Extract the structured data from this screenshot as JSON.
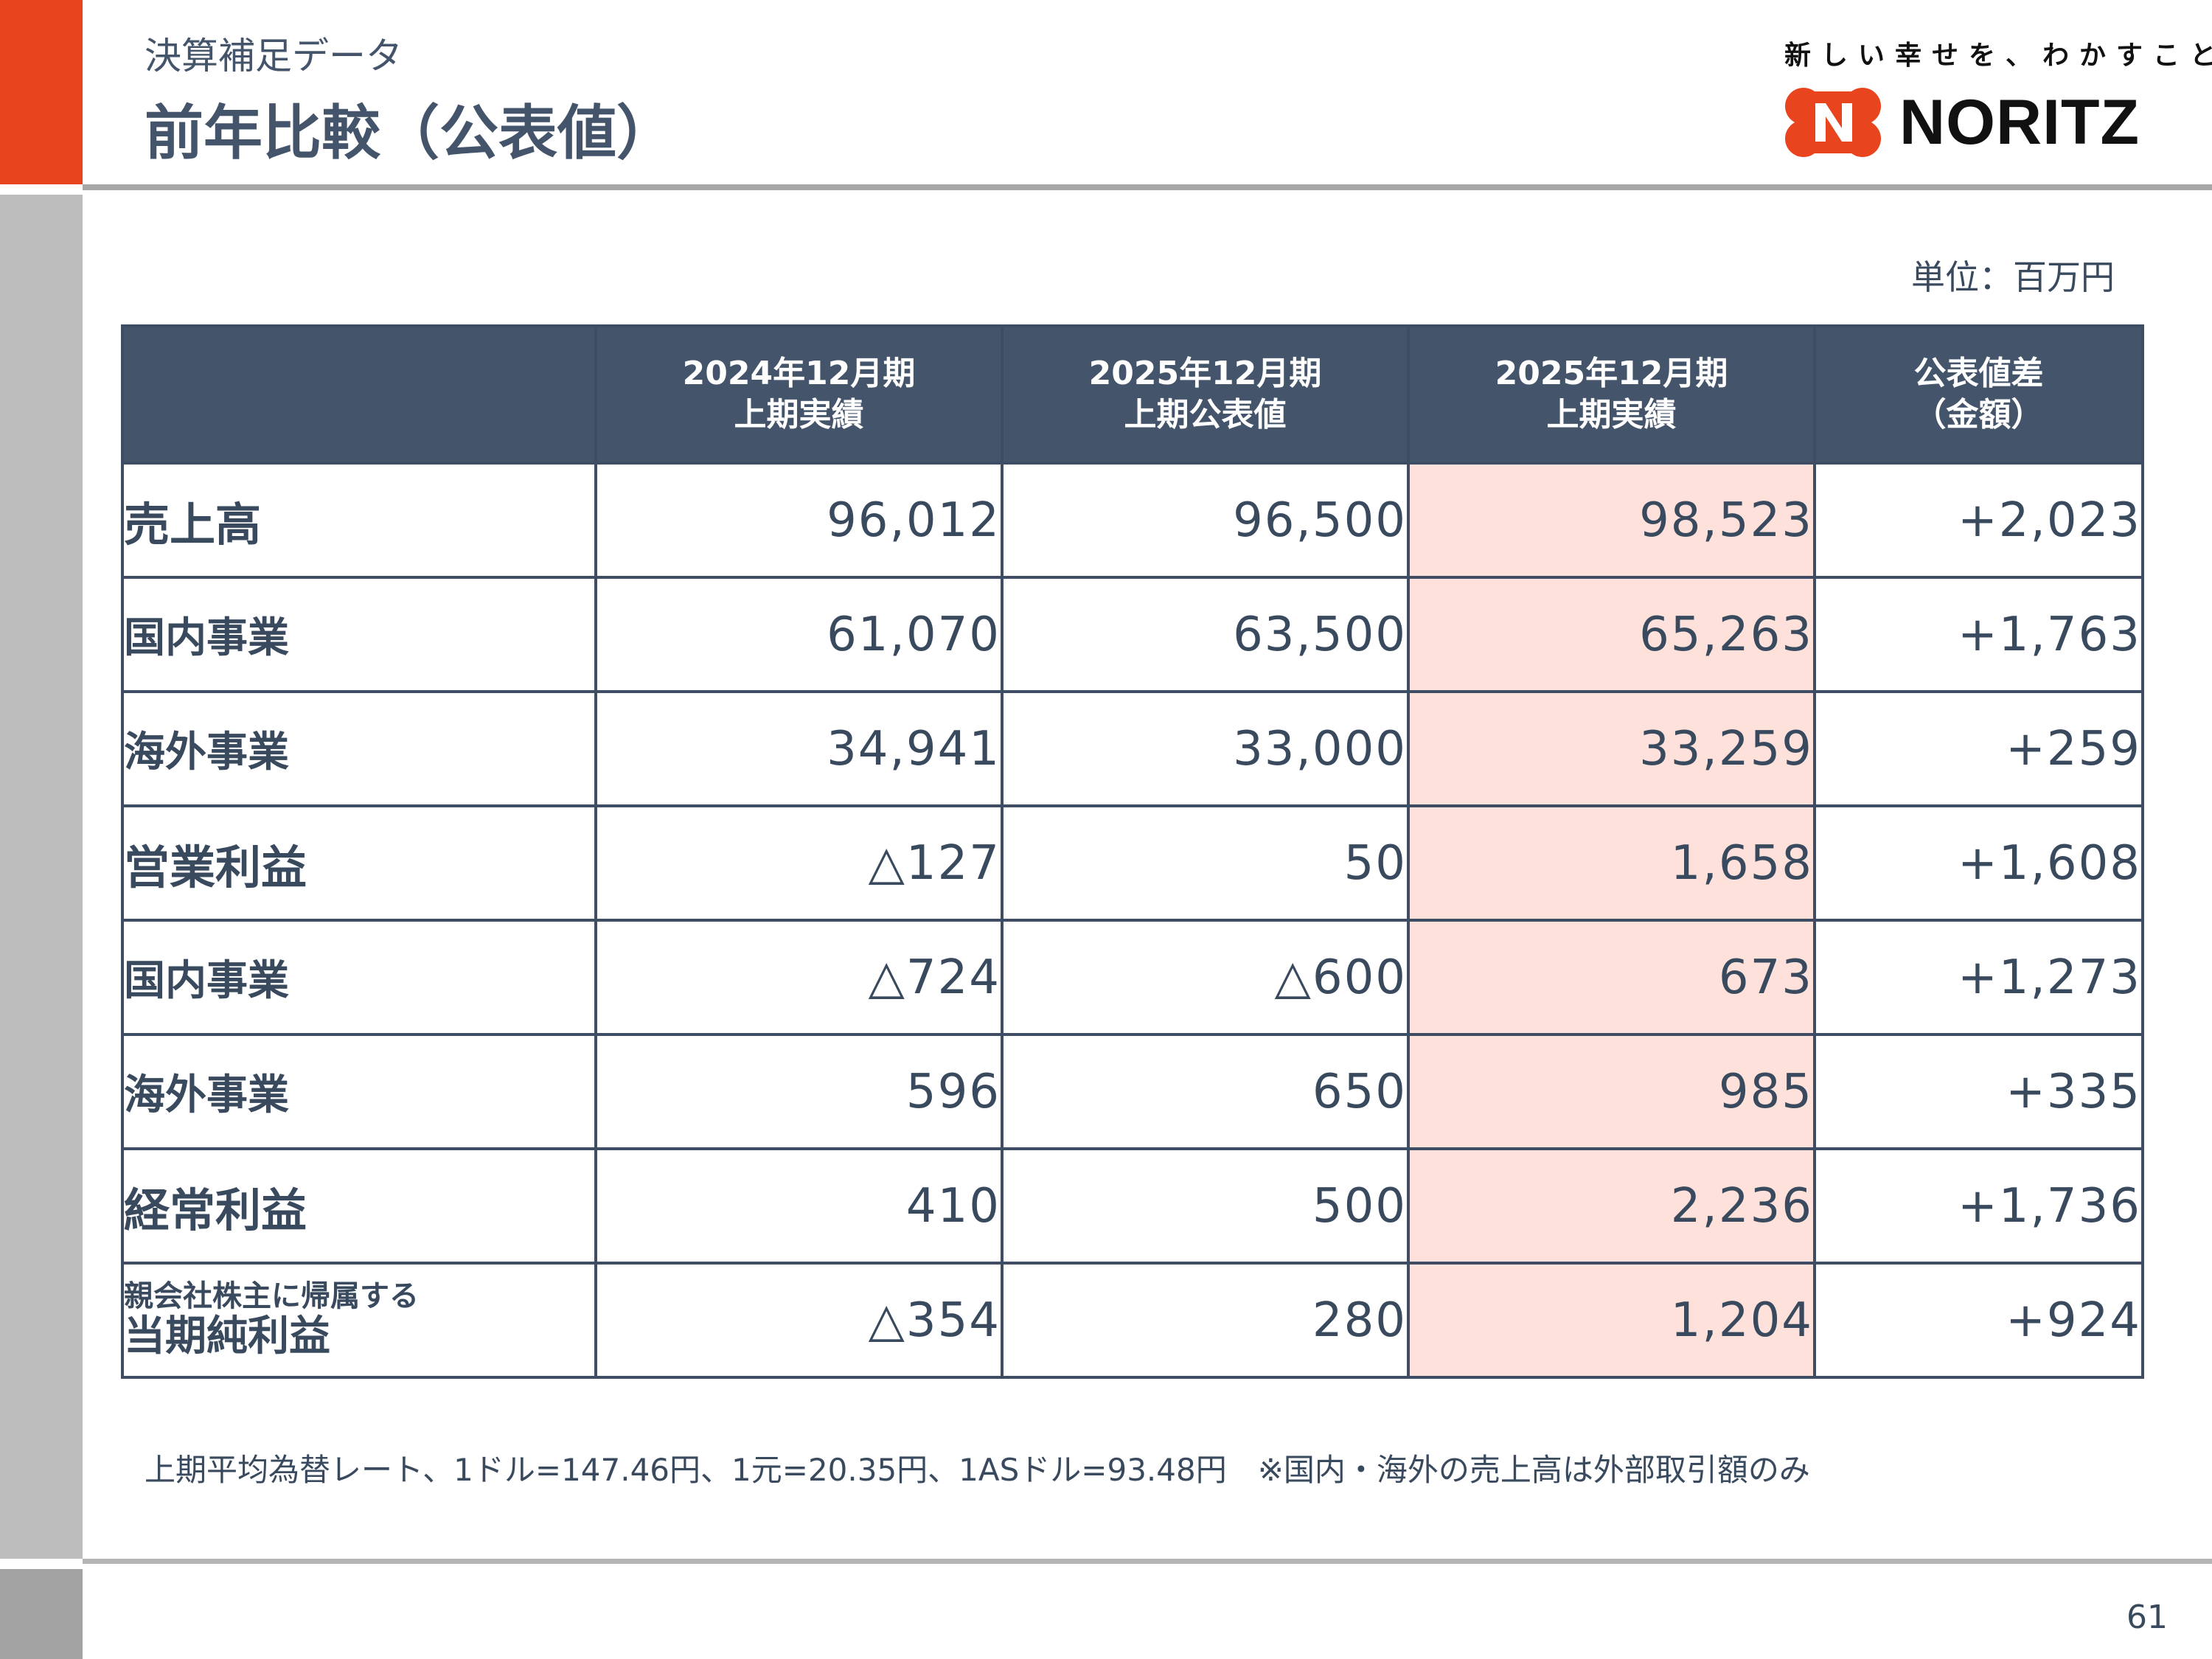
{
  "header": {
    "subtitle": "決算補足データ",
    "title": "前年比較（公表値）",
    "tagline": "新しい幸せを、わかすこと。",
    "brand": "NORITZ",
    "colors": {
      "accent": "#e8451e",
      "header_fill": "#44546a",
      "highlight": "#fde1da",
      "text": "#3a4a5e"
    }
  },
  "unit_label": "単位：百万円",
  "table": {
    "columns": [
      {
        "line1": "2024年12月期",
        "line2": "上期実績"
      },
      {
        "line1": "2025年12月期",
        "line2": "上期公表値"
      },
      {
        "line1": "2025年12月期",
        "line2": "上期実績"
      },
      {
        "line1": "公表値差",
        "line2": "（金額）"
      }
    ],
    "rows": [
      {
        "label": "売上高",
        "values": [
          "96,012",
          "96,500",
          "98,523",
          "+2,023"
        ]
      },
      {
        "label": "国内事業",
        "values": [
          "61,070",
          "63,500",
          "65,263",
          "+1,763"
        ]
      },
      {
        "label": "海外事業",
        "values": [
          "34,941",
          "33,000",
          "33,259",
          "+259"
        ]
      },
      {
        "label": "営業利益",
        "values": [
          "△127",
          "50",
          "1,658",
          "+1,608"
        ]
      },
      {
        "label": "国内事業",
        "values": [
          "△724",
          "△600",
          "673",
          "+1,273"
        ]
      },
      {
        "label": "海外事業",
        "values": [
          "596",
          "650",
          "985",
          "+335"
        ]
      },
      {
        "label": "経常利益",
        "values": [
          "410",
          "500",
          "2,236",
          "+1,736"
        ]
      },
      {
        "label_small": "親会社株主に帰属する",
        "label": "当期純利益",
        "values": [
          "△354",
          "280",
          "1,204",
          "+924"
        ]
      }
    ]
  },
  "footnote": "上期平均為替レート、1ドル=147.46円、1元=20.35円、1ASドル=93.48円　※国内・海外の売上高は外部取引額のみ",
  "page_number": "61"
}
